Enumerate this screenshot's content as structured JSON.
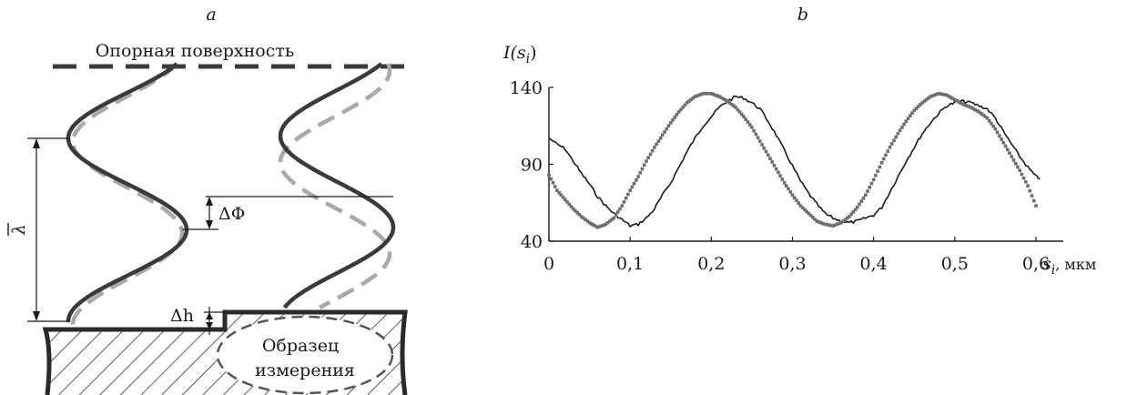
{
  "panel_a": {
    "letter": "a",
    "reference_surface": "Опорная поверхность",
    "lambda_label": "λ",
    "delta_phi_label": "ΔΦ",
    "delta_h_label": "Δh",
    "sample_line1": "Образец",
    "sample_line2": "измерения",
    "colors": {
      "solid": "#3a3a3a",
      "dashed": "#a9a9a9",
      "hatch": "#333333"
    }
  },
  "panel_b": {
    "letter": "b",
    "ylabel": "I(s",
    "ylabel_sub": "i",
    "ylabel_close": ")",
    "xlabel_var": "s",
    "xlabel_sub": "i",
    "xlabel_unit": ", мкм"
  },
  "chart_data": {
    "type": "line",
    "xlim": [
      0,
      0.62
    ],
    "ylim": [
      40,
      140
    ],
    "x_ticks": [
      "0",
      "0,1",
      "0,2",
      "0,3",
      "0,4",
      "0,5",
      "0,6"
    ],
    "x_tick_values": [
      0,
      0.1,
      0.2,
      0.3,
      0.4,
      0.5,
      0.6
    ],
    "y_ticks": [
      "40",
      "90",
      "140"
    ],
    "y_tick_values": [
      40,
      90,
      140
    ],
    "grid": false,
    "series": [
      {
        "style": "solid",
        "color": "#1a1a1a",
        "x": [
          0,
          0.01,
          0.02,
          0.03,
          0.04,
          0.05,
          0.06,
          0.07,
          0.08,
          0.09,
          0.1,
          0.11,
          0.12,
          0.13,
          0.14,
          0.15,
          0.16,
          0.17,
          0.18,
          0.19,
          0.2,
          0.21,
          0.22,
          0.23,
          0.24,
          0.25,
          0.26,
          0.27,
          0.28,
          0.29,
          0.3,
          0.31,
          0.32,
          0.33,
          0.34,
          0.35,
          0.36,
          0.37,
          0.38,
          0.39,
          0.4,
          0.41,
          0.42,
          0.43,
          0.44,
          0.45,
          0.46,
          0.47,
          0.48,
          0.49,
          0.5,
          0.51,
          0.52,
          0.53,
          0.54,
          0.55,
          0.56,
          0.57,
          0.58,
          0.59,
          0.6,
          0.605
        ],
        "y": [
          107,
          103,
          100,
          92,
          84,
          77,
          69,
          63,
          58,
          54,
          50,
          51,
          55,
          61,
          70,
          78,
          88,
          98,
          107,
          115,
          121,
          127,
          131,
          134,
          133,
          130,
          126,
          118,
          109,
          99,
          89,
          79,
          71,
          64,
          58,
          55,
          53,
          52,
          53,
          55,
          57,
          62,
          72,
          82,
          92,
          101,
          110,
          117,
          123,
          128,
          130,
          131,
          130,
          128,
          126,
          120,
          111,
          103,
          95,
          88,
          82,
          81
        ]
      },
      {
        "style": "dotted",
        "color": "#6e6e6e",
        "x": [
          0,
          0.01,
          0.02,
          0.03,
          0.04,
          0.05,
          0.06,
          0.07,
          0.08,
          0.09,
          0.1,
          0.11,
          0.12,
          0.13,
          0.14,
          0.15,
          0.16,
          0.17,
          0.18,
          0.19,
          0.2,
          0.21,
          0.22,
          0.23,
          0.24,
          0.25,
          0.26,
          0.27,
          0.28,
          0.29,
          0.3,
          0.31,
          0.32,
          0.33,
          0.34,
          0.35,
          0.36,
          0.37,
          0.38,
          0.39,
          0.4,
          0.41,
          0.42,
          0.43,
          0.44,
          0.45,
          0.46,
          0.47,
          0.48,
          0.49,
          0.5,
          0.51,
          0.52,
          0.53,
          0.54,
          0.55,
          0.56,
          0.57,
          0.58,
          0.59,
          0.6
        ],
        "y": [
          83,
          73,
          67,
          61,
          56,
          52,
          49,
          51,
          55,
          63,
          73,
          82,
          92,
          101,
          109,
          117,
          124,
          130,
          134,
          136,
          136,
          134,
          131,
          127,
          121,
          114,
          105,
          96,
          87,
          78,
          70,
          63,
          58,
          53,
          51,
          50,
          52,
          56,
          62,
          70,
          80,
          91,
          101,
          110,
          118,
          125,
          130,
          134,
          136,
          135,
          132,
          129,
          127,
          124,
          120,
          113,
          104,
          95,
          86,
          76,
          63
        ]
      }
    ]
  }
}
